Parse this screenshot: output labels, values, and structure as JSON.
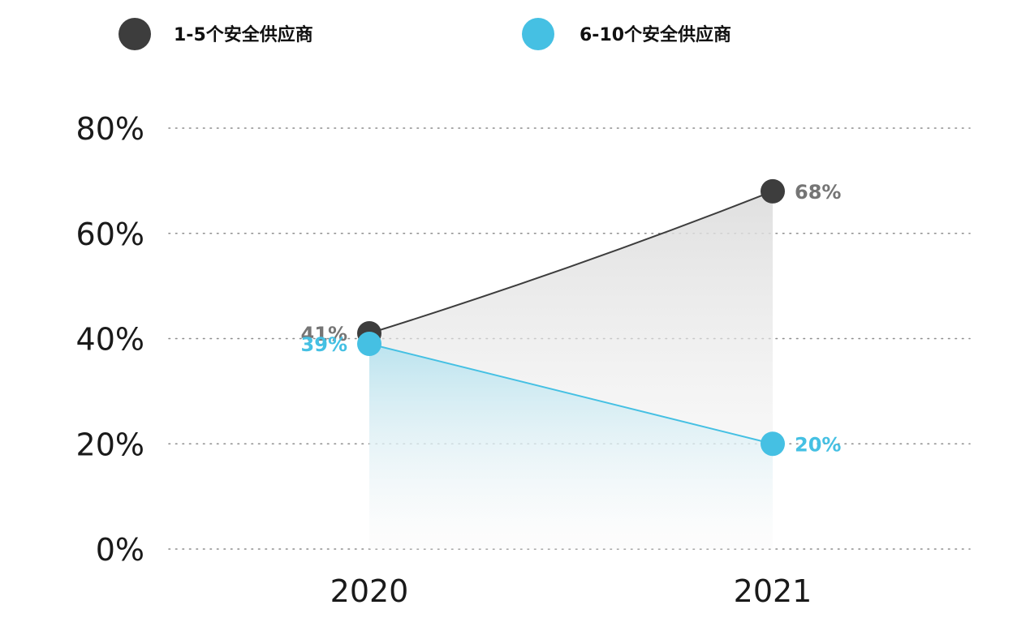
{
  "chart_data": {
    "type": "line",
    "title": "",
    "xlabel": "",
    "ylabel": "",
    "categories": [
      "2020",
      "2021"
    ],
    "ylim": [
      0,
      80
    ],
    "yticks": [
      0,
      20,
      40,
      60,
      80
    ],
    "ytick_labels": [
      "0%",
      "20%",
      "40%",
      "60%",
      "80%"
    ],
    "grid": "dotted-horizontal",
    "legend_position": "top-left",
    "series": [
      {
        "name": "1-5个安全供应商",
        "values": [
          41,
          68
        ],
        "labels": [
          "41%",
          "68%"
        ],
        "color": "#3d3d3d",
        "label_color": "#757575",
        "fill": "gradient-grey"
      },
      {
        "name": "6-10个安全供应商",
        "values": [
          39,
          20
        ],
        "labels": [
          "39%",
          "20%"
        ],
        "color": "#45c0e3",
        "label_color": "#45c0e3",
        "fill": "gradient-cyan"
      }
    ]
  }
}
